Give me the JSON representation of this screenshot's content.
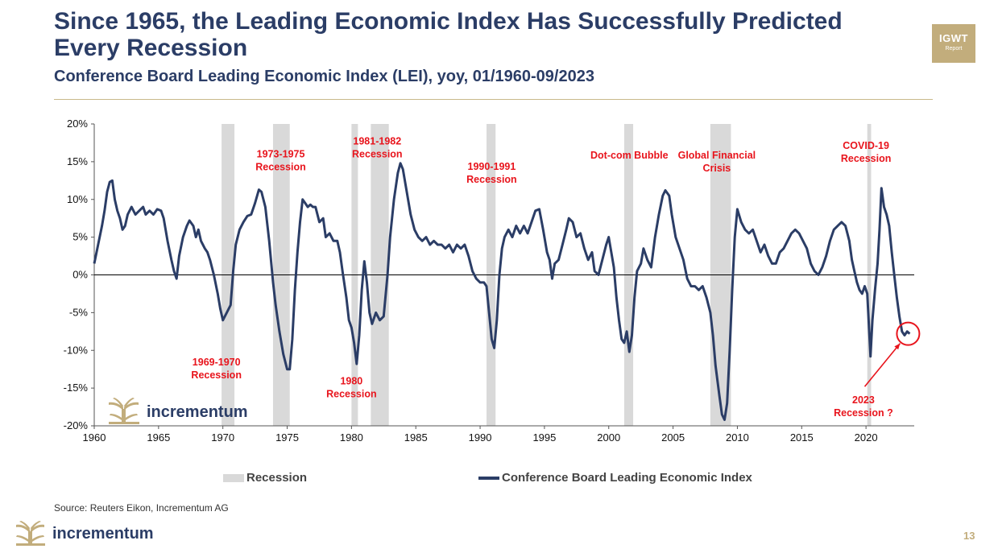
{
  "slide": {
    "title": "Since 1965, the Leading Economic Index Has Successfully Predicted Every Recession",
    "subtitle": "Conference Board Leading Economic Index (LEI), yoy, 01/1960-09/2023",
    "source": "Source: Reuters Eikon, Incrementum AG",
    "page_number": "13",
    "badge_title": "IGWT",
    "badge_sub": "Report",
    "logo_text": "incrementum",
    "colors": {
      "navy": "#2b3d66",
      "gold": "#c2ad7c",
      "recession": "#d9d9d9",
      "annotation": "#e8141c"
    }
  },
  "chart_data": {
    "type": "line",
    "title": "",
    "xlabel": "",
    "ylabel": "",
    "xlim": [
      1960,
      2023.75
    ],
    "ylim": [
      -20,
      20
    ],
    "x_ticks": [
      "1960",
      "1965",
      "1970",
      "1975",
      "1980",
      "1985",
      "1990",
      "1995",
      "2000",
      "2005",
      "2010",
      "2015",
      "2020"
    ],
    "y_ticks": [
      "20%",
      "15%",
      "10%",
      "5%",
      "0%",
      "-5%",
      "-10%",
      "-15%",
      "-20%"
    ],
    "legend": {
      "placement": "bottom",
      "recession": "Recession",
      "lei": "Conference Board Leading Economic Index"
    },
    "recessions": [
      {
        "start": 1969.9,
        "end": 1970.9
      },
      {
        "start": 1973.9,
        "end": 1975.2
      },
      {
        "start": 1980.0,
        "end": 1980.5
      },
      {
        "start": 1981.5,
        "end": 1982.9
      },
      {
        "start": 1990.5,
        "end": 1991.2
      },
      {
        "start": 2001.2,
        "end": 2001.9
      },
      {
        "start": 2007.9,
        "end": 2009.5
      },
      {
        "start": 2020.1,
        "end": 2020.4
      }
    ],
    "series": [
      {
        "name": "Conference Board Leading Economic Index",
        "points": [
          [
            1960.0,
            1.5
          ],
          [
            1960.3,
            4.0
          ],
          [
            1960.6,
            6.5
          ],
          [
            1960.8,
            8.5
          ],
          [
            1961.0,
            11.0
          ],
          [
            1961.2,
            12.3
          ],
          [
            1961.4,
            12.5
          ],
          [
            1961.6,
            10.0
          ],
          [
            1961.8,
            8.5
          ],
          [
            1962.0,
            7.5
          ],
          [
            1962.2,
            6.0
          ],
          [
            1962.4,
            6.5
          ],
          [
            1962.6,
            8.0
          ],
          [
            1962.9,
            9.0
          ],
          [
            1963.2,
            8.0
          ],
          [
            1963.5,
            8.5
          ],
          [
            1963.8,
            9.0
          ],
          [
            1964.0,
            8.0
          ],
          [
            1964.3,
            8.5
          ],
          [
            1964.6,
            8.0
          ],
          [
            1964.9,
            8.7
          ],
          [
            1965.2,
            8.5
          ],
          [
            1965.4,
            7.5
          ],
          [
            1965.7,
            4.5
          ],
          [
            1966.0,
            2.0
          ],
          [
            1966.2,
            0.5
          ],
          [
            1966.4,
            -0.5
          ],
          [
            1966.6,
            2.5
          ],
          [
            1966.9,
            5.0
          ],
          [
            1967.2,
            6.5
          ],
          [
            1967.4,
            7.2
          ],
          [
            1967.7,
            6.5
          ],
          [
            1967.9,
            5.0
          ],
          [
            1968.1,
            6.0
          ],
          [
            1968.3,
            4.5
          ],
          [
            1968.6,
            3.5
          ],
          [
            1968.8,
            3.0
          ],
          [
            1969.0,
            2.0
          ],
          [
            1969.3,
            0.0
          ],
          [
            1969.6,
            -2.5
          ],
          [
            1969.8,
            -4.5
          ],
          [
            1970.0,
            -6.0
          ],
          [
            1970.3,
            -5.0
          ],
          [
            1970.6,
            -4.0
          ],
          [
            1970.8,
            0.5
          ],
          [
            1971.0,
            4.0
          ],
          [
            1971.3,
            6.0
          ],
          [
            1971.6,
            7.0
          ],
          [
            1971.9,
            7.8
          ],
          [
            1972.2,
            8.0
          ],
          [
            1972.5,
            9.5
          ],
          [
            1972.8,
            11.3
          ],
          [
            1973.0,
            11.0
          ],
          [
            1973.3,
            9.0
          ],
          [
            1973.6,
            4.5
          ],
          [
            1973.9,
            -1.0
          ],
          [
            1974.1,
            -4.0
          ],
          [
            1974.4,
            -7.5
          ],
          [
            1974.7,
            -10.5
          ],
          [
            1975.0,
            -12.5
          ],
          [
            1975.2,
            -12.5
          ],
          [
            1975.4,
            -8.5
          ],
          [
            1975.6,
            -2.0
          ],
          [
            1975.8,
            3.0
          ],
          [
            1976.0,
            7.0
          ],
          [
            1976.2,
            10.0
          ],
          [
            1976.4,
            9.5
          ],
          [
            1976.6,
            9.0
          ],
          [
            1976.8,
            9.3
          ],
          [
            1977.0,
            9.0
          ],
          [
            1977.2,
            9.0
          ],
          [
            1977.5,
            7.0
          ],
          [
            1977.8,
            7.5
          ],
          [
            1978.0,
            5.0
          ],
          [
            1978.3,
            5.5
          ],
          [
            1978.6,
            4.5
          ],
          [
            1978.9,
            4.5
          ],
          [
            1979.1,
            3.0
          ],
          [
            1979.3,
            0.5
          ],
          [
            1979.6,
            -3.0
          ],
          [
            1979.8,
            -6.0
          ],
          [
            1980.0,
            -7.0
          ],
          [
            1980.2,
            -9.0
          ],
          [
            1980.4,
            -11.8
          ],
          [
            1980.6,
            -8.0
          ],
          [
            1980.8,
            -2.0
          ],
          [
            1981.0,
            1.8
          ],
          [
            1981.2,
            -1.0
          ],
          [
            1981.4,
            -5.0
          ],
          [
            1981.6,
            -6.5
          ],
          [
            1981.9,
            -5.0
          ],
          [
            1982.2,
            -6.0
          ],
          [
            1982.5,
            -5.5
          ],
          [
            1982.8,
            0.0
          ],
          [
            1983.0,
            5.0
          ],
          [
            1983.3,
            10.0
          ],
          [
            1983.6,
            13.5
          ],
          [
            1983.8,
            14.8
          ],
          [
            1984.0,
            14.0
          ],
          [
            1984.3,
            11.0
          ],
          [
            1984.6,
            8.0
          ],
          [
            1984.9,
            6.0
          ],
          [
            1985.2,
            5.0
          ],
          [
            1985.5,
            4.5
          ],
          [
            1985.8,
            5.0
          ],
          [
            1986.1,
            4.0
          ],
          [
            1986.4,
            4.5
          ],
          [
            1986.7,
            4.0
          ],
          [
            1987.0,
            4.0
          ],
          [
            1987.3,
            3.5
          ],
          [
            1987.6,
            4.0
          ],
          [
            1987.9,
            3.0
          ],
          [
            1988.2,
            4.0
          ],
          [
            1988.5,
            3.5
          ],
          [
            1988.8,
            4.0
          ],
          [
            1989.1,
            2.5
          ],
          [
            1989.4,
            0.5
          ],
          [
            1989.7,
            -0.5
          ],
          [
            1990.0,
            -1.0
          ],
          [
            1990.3,
            -1.0
          ],
          [
            1990.5,
            -1.5
          ],
          [
            1990.7,
            -5.0
          ],
          [
            1990.9,
            -8.5
          ],
          [
            1991.1,
            -9.7
          ],
          [
            1991.3,
            -6.0
          ],
          [
            1991.5,
            0.0
          ],
          [
            1991.7,
            3.5
          ],
          [
            1991.9,
            5.0
          ],
          [
            1992.2,
            6.0
          ],
          [
            1992.5,
            5.0
          ],
          [
            1992.8,
            6.5
          ],
          [
            1993.1,
            5.5
          ],
          [
            1993.4,
            6.5
          ],
          [
            1993.7,
            5.5
          ],
          [
            1994.0,
            7.0
          ],
          [
            1994.3,
            8.5
          ],
          [
            1994.6,
            8.7
          ],
          [
            1994.9,
            6.0
          ],
          [
            1995.2,
            3.0
          ],
          [
            1995.4,
            2.0
          ],
          [
            1995.6,
            -0.5
          ],
          [
            1995.8,
            1.5
          ],
          [
            1996.1,
            2.0
          ],
          [
            1996.4,
            4.0
          ],
          [
            1996.7,
            6.0
          ],
          [
            1996.9,
            7.5
          ],
          [
            1997.2,
            7.0
          ],
          [
            1997.5,
            5.0
          ],
          [
            1997.8,
            5.5
          ],
          [
            1998.1,
            3.5
          ],
          [
            1998.4,
            2.0
          ],
          [
            1998.7,
            3.0
          ],
          [
            1998.9,
            0.5
          ],
          [
            1999.2,
            0.0
          ],
          [
            1999.5,
            2.0
          ],
          [
            1999.8,
            4.0
          ],
          [
            2000.0,
            5.0
          ],
          [
            2000.2,
            3.0
          ],
          [
            2000.4,
            1.0
          ],
          [
            2000.6,
            -3.0
          ],
          [
            2000.8,
            -6.0
          ],
          [
            2001.0,
            -8.5
          ],
          [
            2001.2,
            -9.0
          ],
          [
            2001.4,
            -7.5
          ],
          [
            2001.6,
            -10.2
          ],
          [
            2001.8,
            -8.0
          ],
          [
            2002.0,
            -3.0
          ],
          [
            2002.2,
            0.5
          ],
          [
            2002.5,
            1.5
          ],
          [
            2002.7,
            3.5
          ],
          [
            2003.0,
            2.0
          ],
          [
            2003.3,
            1.0
          ],
          [
            2003.6,
            5.0
          ],
          [
            2003.9,
            8.0
          ],
          [
            2004.2,
            10.5
          ],
          [
            2004.4,
            11.2
          ],
          [
            2004.7,
            10.5
          ],
          [
            2004.9,
            8.0
          ],
          [
            2005.2,
            5.0
          ],
          [
            2005.5,
            3.5
          ],
          [
            2005.8,
            2.0
          ],
          [
            2006.1,
            -0.5
          ],
          [
            2006.4,
            -1.5
          ],
          [
            2006.7,
            -1.5
          ],
          [
            2007.0,
            -2.0
          ],
          [
            2007.3,
            -1.5
          ],
          [
            2007.6,
            -3.0
          ],
          [
            2007.9,
            -5.0
          ],
          [
            2008.1,
            -8.0
          ],
          [
            2008.3,
            -12.0
          ],
          [
            2008.6,
            -16.0
          ],
          [
            2008.8,
            -18.5
          ],
          [
            2009.0,
            -19.2
          ],
          [
            2009.2,
            -17.0
          ],
          [
            2009.4,
            -10.0
          ],
          [
            2009.6,
            -2.0
          ],
          [
            2009.8,
            5.0
          ],
          [
            2010.0,
            8.7
          ],
          [
            2010.3,
            7.0
          ],
          [
            2010.6,
            6.0
          ],
          [
            2010.9,
            5.5
          ],
          [
            2011.2,
            6.0
          ],
          [
            2011.5,
            4.5
          ],
          [
            2011.8,
            3.0
          ],
          [
            2012.1,
            4.0
          ],
          [
            2012.4,
            2.5
          ],
          [
            2012.7,
            1.5
          ],
          [
            2013.0,
            1.5
          ],
          [
            2013.3,
            3.0
          ],
          [
            2013.6,
            3.5
          ],
          [
            2013.9,
            4.5
          ],
          [
            2014.2,
            5.5
          ],
          [
            2014.5,
            6.0
          ],
          [
            2014.8,
            5.5
          ],
          [
            2015.1,
            4.5
          ],
          [
            2015.4,
            3.5
          ],
          [
            2015.7,
            1.5
          ],
          [
            2016.0,
            0.5
          ],
          [
            2016.3,
            0.0
          ],
          [
            2016.6,
            1.0
          ],
          [
            2016.9,
            2.5
          ],
          [
            2017.2,
            4.5
          ],
          [
            2017.5,
            6.0
          ],
          [
            2017.8,
            6.5
          ],
          [
            2018.1,
            7.0
          ],
          [
            2018.4,
            6.5
          ],
          [
            2018.7,
            4.5
          ],
          [
            2018.9,
            2.0
          ],
          [
            2019.1,
            0.5
          ],
          [
            2019.3,
            -1.0
          ],
          [
            2019.5,
            -2.0
          ],
          [
            2019.7,
            -2.5
          ],
          [
            2019.9,
            -1.5
          ],
          [
            2020.1,
            -2.5
          ],
          [
            2020.25,
            -7.5
          ],
          [
            2020.35,
            -10.8
          ],
          [
            2020.5,
            -6.0
          ],
          [
            2020.7,
            -2.0
          ],
          [
            2020.9,
            1.5
          ],
          [
            2021.05,
            6.0
          ],
          [
            2021.2,
            11.5
          ],
          [
            2021.4,
            9.0
          ],
          [
            2021.6,
            8.0
          ],
          [
            2021.8,
            6.5
          ],
          [
            2022.0,
            3.0
          ],
          [
            2022.2,
            0.0
          ],
          [
            2022.4,
            -3.0
          ],
          [
            2022.6,
            -5.5
          ],
          [
            2022.8,
            -7.5
          ],
          [
            2023.0,
            -8.0
          ],
          [
            2023.2,
            -7.5
          ],
          [
            2023.4,
            -7.8
          ]
        ]
      }
    ],
    "annotations": [
      {
        "text": "1969-1970|Recession",
        "x": 1969.5,
        "y": -12.0
      },
      {
        "text": "1973-1975|Recession",
        "x": 1974.5,
        "y": 15.6
      },
      {
        "text": "1980|Recession",
        "x": 1980.0,
        "y": -14.5
      },
      {
        "text": "1981-1982|Recession",
        "x": 1982.0,
        "y": 17.3
      },
      {
        "text": "1990-1991|Recession",
        "x": 1990.9,
        "y": 13.9
      },
      {
        "text": "Dot-com Bubble",
        "x": 2001.6,
        "y": 15.4
      },
      {
        "text": "Global Financial|Crisis",
        "x": 2008.4,
        "y": 15.4
      },
      {
        "text": "COVID-19|Recession",
        "x": 2020.0,
        "y": 16.7
      },
      {
        "text": "2023|Recession ?",
        "x": 2019.8,
        "y": -17.0
      }
    ]
  }
}
